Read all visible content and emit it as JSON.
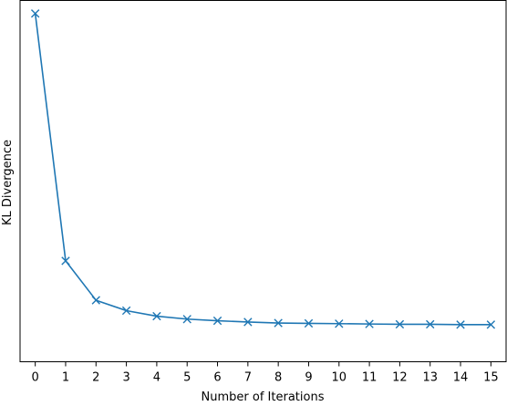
{
  "chart_data": {
    "type": "line",
    "xlabel": "Number of Iterations",
    "ylabel": "KL Divergence",
    "x": [
      0,
      1,
      2,
      3,
      4,
      5,
      6,
      7,
      8,
      9,
      10,
      11,
      12,
      13,
      14,
      15
    ],
    "x_tick_labels": [
      "0",
      "1",
      "2",
      "3",
      "4",
      "5",
      "6",
      "7",
      "8",
      "9",
      "10",
      "11",
      "12",
      "13",
      "14",
      "15"
    ],
    "xlim": [
      -0.5,
      15.5
    ],
    "series": [
      {
        "values": [
          1.0,
          0.24,
          0.119,
          0.087,
          0.07,
          0.061,
          0.056,
          0.052,
          0.049,
          0.048,
          0.047,
          0.046,
          0.045,
          0.045,
          0.044,
          0.044
        ],
        "color": "#1f77b4",
        "marker": "x"
      }
    ],
    "ylim": [
      -0.07,
      1.04
    ],
    "y_ticks_visible": false,
    "grid": false
  }
}
